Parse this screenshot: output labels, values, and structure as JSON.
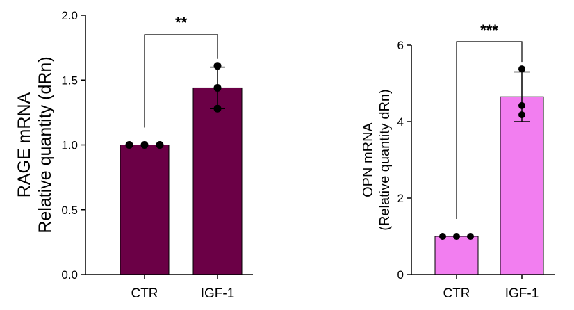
{
  "chart_data": [
    {
      "type": "bar",
      "title": "",
      "xlabel": "",
      "ylabel": [
        "RAGE mRNA",
        "Relative quantity (dRn)"
      ],
      "categories": [
        "CTR",
        "IGF-1"
      ],
      "values": [
        1.0,
        1.44
      ],
      "error_low": [
        1.0,
        1.28
      ],
      "error_high": [
        1.0,
        1.6
      ],
      "points": [
        [
          1.0,
          1.0,
          1.0
        ],
        [
          1.61,
          1.44,
          1.28
        ]
      ],
      "ylim": [
        0,
        2.0
      ],
      "yticks": [
        "0.0",
        "0.5",
        "1.0",
        "1.5",
        "2.0"
      ],
      "ytick_values": [
        0,
        0.5,
        1.0,
        1.5,
        2.0
      ],
      "significance": "**",
      "bar_color": "#6b0046",
      "grid": false
    },
    {
      "type": "bar",
      "title": "",
      "xlabel": "",
      "ylabel": [
        "OPN mRNA",
        "(Relative quantity dRn)"
      ],
      "categories": [
        "CTR",
        "IGF-1"
      ],
      "values": [
        1.0,
        4.65
      ],
      "error_low": [
        1.0,
        4.0
      ],
      "error_high": [
        1.0,
        5.3
      ],
      "points": [
        [
          1.0,
          1.0,
          1.0
        ],
        [
          5.38,
          4.42,
          4.18
        ]
      ],
      "ylim": [
        0,
        6
      ],
      "yticks": [
        "0",
        "2",
        "4",
        "6"
      ],
      "ytick_values": [
        0,
        2,
        4,
        6
      ],
      "significance": "***",
      "bar_color": "#f27ef0",
      "grid": false
    }
  ]
}
